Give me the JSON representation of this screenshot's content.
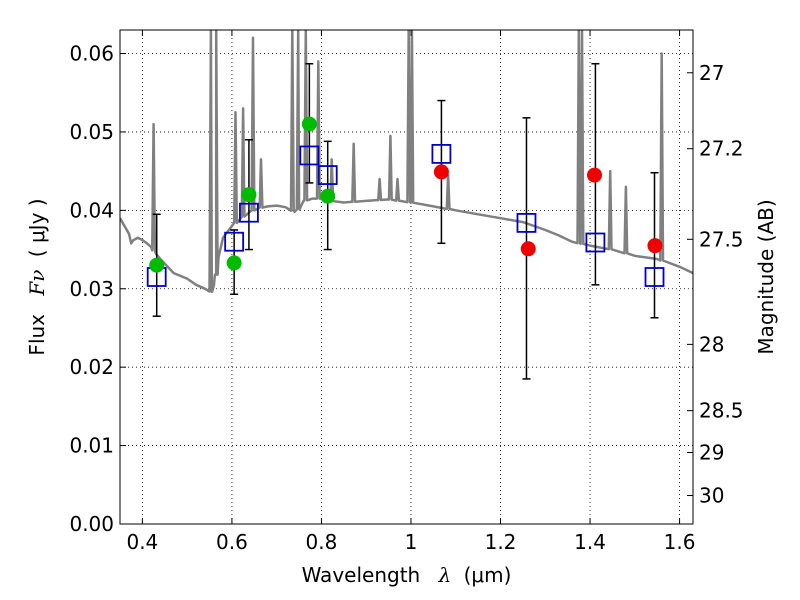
{
  "chart_data": {
    "type": "scatter",
    "x_axis": {
      "label_prefix": "Wavelength",
      "label_symbol": "λ",
      "label_unit": "(μm)",
      "range": [
        0.35,
        1.63
      ],
      "ticks": [
        0.4,
        0.6,
        0.8,
        1.0,
        1.2,
        1.4,
        1.6
      ],
      "tick_labels": [
        "0.4",
        "0.6",
        "0.8",
        "1",
        "1.2",
        "1.4",
        "1.6"
      ]
    },
    "y_axis": {
      "label_prefix": "Flux",
      "label_symbol": "Fν",
      "label_unit": "( μJy )",
      "range": [
        0.0,
        0.063
      ],
      "ticks": [
        0.0,
        0.01,
        0.02,
        0.03,
        0.04,
        0.05,
        0.06
      ],
      "tick_labels": [
        "0.00",
        "0.01",
        "0.02",
        "0.03",
        "0.04",
        "0.05",
        "0.06"
      ]
    },
    "y2_axis": {
      "label": "Magnitude (AB)",
      "ticks": [
        27.0,
        27.2,
        27.5,
        28.0,
        28.5,
        29.0,
        30.0
      ],
      "tick_labels": [
        "27",
        "27.2",
        "27.5",
        "28",
        "28.5",
        "29",
        "30"
      ],
      "conversion": "flux_uJy = 10^((23.9 - mag)/2.5)"
    },
    "grid": true,
    "series": [
      {
        "marker": "open-square",
        "color": "#0000cc",
        "x": [
          0.432,
          0.605,
          0.638,
          0.773,
          0.814,
          1.068,
          1.258,
          1.412,
          1.544
        ],
        "y": [
          0.0315,
          0.036,
          0.0397,
          0.047,
          0.0445,
          0.0472,
          0.0384,
          0.0359,
          0.0315
        ],
        "yerr_low": [
          0.0265,
          0.0293,
          0.035,
          0.0435,
          0.035,
          0.0358,
          0.0185,
          0.0305,
          0.0263
        ],
        "yerr_high": [
          0.0395,
          0.0375,
          0.049,
          0.0587,
          0.0488,
          0.054,
          0.0518,
          0.0587,
          0.0448
        ]
      },
      {
        "marker": "filled-circle",
        "color": "#00bb00",
        "x": [
          0.432,
          0.605,
          0.638,
          0.773,
          0.814
        ],
        "y": [
          0.033,
          0.0333,
          0.042,
          0.051,
          0.0418
        ]
      },
      {
        "marker": "filled-circle",
        "color": "#ee0000",
        "x": [
          1.068,
          1.262,
          1.41,
          1.545
        ],
        "y": [
          0.0449,
          0.0351,
          0.0445,
          0.0355
        ]
      }
    ],
    "sed_model": {
      "color": "#808080",
      "x": [
        0.35,
        0.36,
        0.37,
        0.375,
        0.38,
        0.39,
        0.4,
        0.41,
        0.42,
        0.43,
        0.44,
        0.45,
        0.47,
        0.5,
        0.52,
        0.54,
        0.555,
        0.56,
        0.565,
        0.57,
        0.58,
        0.6,
        0.62,
        0.64,
        0.66,
        0.68,
        0.7,
        0.72,
        0.74,
        0.75,
        0.76,
        0.78,
        0.8,
        0.82,
        0.85,
        0.9,
        0.95,
        1.0,
        1.05,
        1.1,
        1.15,
        1.2,
        1.25,
        1.3,
        1.33,
        1.36,
        1.4,
        1.45,
        1.5,
        1.55,
        1.6,
        1.63
      ],
      "y": [
        0.039,
        0.038,
        0.037,
        0.0358,
        0.0362,
        0.0365,
        0.0362,
        0.0358,
        0.0353,
        0.0345,
        0.0338,
        0.0332,
        0.032,
        0.0313,
        0.0305,
        0.03,
        0.0296,
        0.0305,
        0.0318,
        0.034,
        0.0365,
        0.038,
        0.039,
        0.0398,
        0.0403,
        0.0405,
        0.0406,
        0.0404,
        0.0398,
        0.0402,
        0.0412,
        0.0415,
        0.0415,
        0.0412,
        0.041,
        0.0412,
        0.0414,
        0.041,
        0.0405,
        0.04,
        0.0395,
        0.039,
        0.0385,
        0.0375,
        0.0368,
        0.036,
        0.0355,
        0.035,
        0.0342,
        0.0338,
        0.0328,
        0.032
      ],
      "emission_lines": [
        {
          "x": 0.425,
          "peak": 0.051
        },
        {
          "x": 0.553,
          "peak": 0.063
        },
        {
          "x": 0.565,
          "peak": 0.063
        },
        {
          "x": 0.608,
          "peak": 0.0525
        },
        {
          "x": 0.625,
          "peak": 0.053
        },
        {
          "x": 0.647,
          "peak": 0.062
        },
        {
          "x": 0.665,
          "peak": 0.0465
        },
        {
          "x": 0.735,
          "peak": 0.063
        },
        {
          "x": 0.748,
          "peak": 0.063
        },
        {
          "x": 0.765,
          "peak": 0.063
        },
        {
          "x": 0.793,
          "peak": 0.059
        },
        {
          "x": 0.823,
          "peak": 0.0465
        },
        {
          "x": 0.872,
          "peak": 0.0485
        },
        {
          "x": 0.93,
          "peak": 0.044
        },
        {
          "x": 0.954,
          "peak": 0.0495
        },
        {
          "x": 0.97,
          "peak": 0.044
        },
        {
          "x": 0.995,
          "peak": 0.063
        },
        {
          "x": 1.002,
          "peak": 0.063
        },
        {
          "x": 1.083,
          "peak": 0.0445
        },
        {
          "x": 1.375,
          "peak": 0.063
        },
        {
          "x": 1.382,
          "peak": 0.063
        },
        {
          "x": 1.445,
          "peak": 0.045
        },
        {
          "x": 1.48,
          "peak": 0.043
        },
        {
          "x": 1.56,
          "peak": 0.06
        }
      ]
    }
  }
}
